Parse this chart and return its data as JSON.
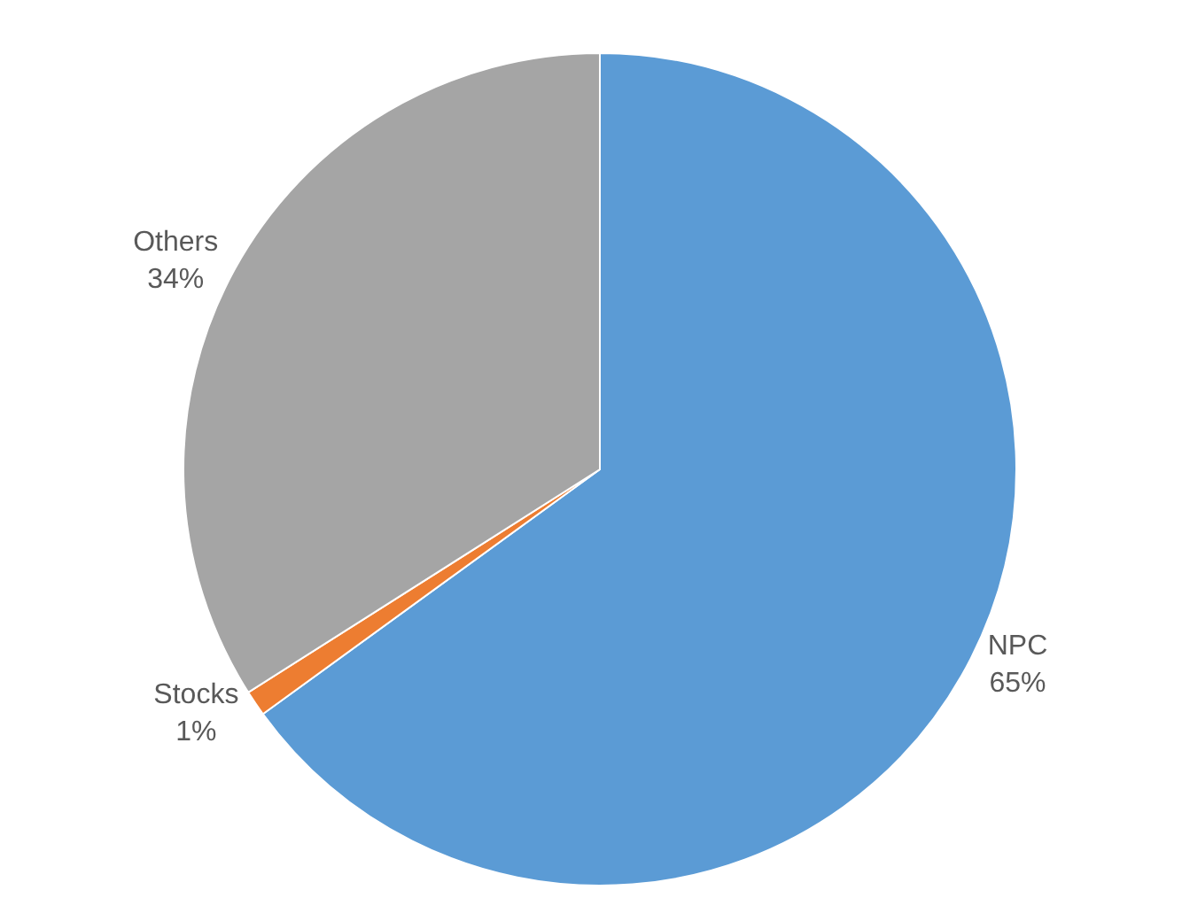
{
  "chart_data": {
    "type": "pie",
    "categories": [
      "NPC",
      "Stocks",
      "Others"
    ],
    "values": [
      65,
      1,
      34
    ],
    "colors": [
      "#5b9bd5",
      "#ed7d31",
      "#a5a5a5"
    ],
    "value_labels": [
      "65%",
      "1%",
      "34%"
    ]
  }
}
